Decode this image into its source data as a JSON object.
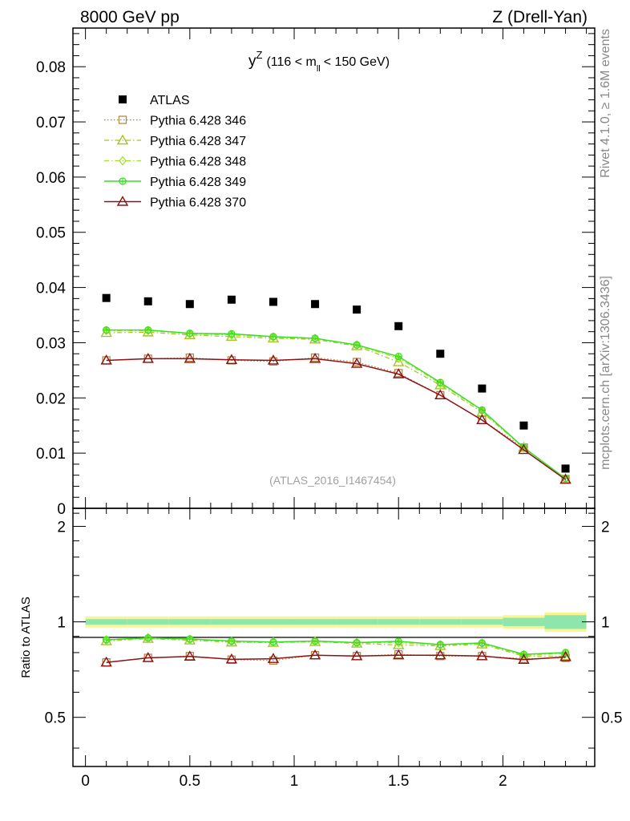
{
  "header": {
    "left": "8000 GeV pp",
    "right": "Z (Drell-Yan)"
  },
  "side_labels": {
    "rivet": "Rivet 4.1.0, ≥ 1.6M events",
    "mcplots": "mcplots.cern.ch [arXiv:1306.3436]"
  },
  "colors": {
    "atlas": "#000000",
    "p346": "#b5884a",
    "p347": "#a8c22a",
    "p348": "#9ee32b",
    "p349": "#36e01f",
    "p370": "#8e1212",
    "band_outer": "#fbf590",
    "band_inner": "#8fe6ad"
  },
  "chart_data": [
    {
      "type": "scatter",
      "title": "y^Z (116 < m_ll < 150 GeV)",
      "title_main": "y",
      "title_sup": "Z",
      "title_rest_a": "(116 < m",
      "title_sub": "ll",
      "title_rest_b": "< 150 GeV)",
      "watermark": "(ATLAS_2016_I1467454)",
      "xlabel": "",
      "ylabel": "",
      "xlim": [
        -0.06,
        2.44
      ],
      "ylim": [
        0,
        0.087
      ],
      "x": [
        0.1,
        0.3,
        0.5,
        0.7,
        0.9,
        1.1,
        1.3,
        1.5,
        1.7,
        1.9,
        2.1,
        2.3
      ],
      "yticks": [
        "0",
        "0.01",
        "0.02",
        "0.03",
        "0.04",
        "0.05",
        "0.06",
        "0.07",
        "0.08"
      ],
      "series": [
        {
          "name": "ATLAS",
          "key": "atlas",
          "marker": "square-filled",
          "line": "none",
          "values": [
            0.0381,
            0.0375,
            0.037,
            0.0378,
            0.0374,
            0.037,
            0.036,
            0.033,
            0.028,
            0.0217,
            0.015,
            0.0072
          ]
        },
        {
          "name": "Pythia 6.428 346",
          "key": "p346",
          "marker": "square-open",
          "line": "dotted",
          "values": [
            0.0268,
            0.0271,
            0.0273,
            0.0268,
            0.0266,
            0.0273,
            0.0265,
            0.0245,
            0.0205,
            0.016,
            0.011,
            0.0053
          ]
        },
        {
          "name": "Pythia 6.428 347",
          "key": "p347",
          "marker": "triangle-open",
          "line": "dashdot",
          "values": [
            0.0318,
            0.0319,
            0.0314,
            0.0311,
            0.0308,
            0.0306,
            0.0294,
            0.0265,
            0.0223,
            0.0174,
            0.011,
            0.0053
          ]
        },
        {
          "name": "Pythia 6.428 348",
          "key": "p348",
          "marker": "diamond-open",
          "line": "dashdot",
          "values": [
            0.0322,
            0.0322,
            0.0316,
            0.0314,
            0.031,
            0.0307,
            0.0295,
            0.0272,
            0.0226,
            0.0177,
            0.011,
            0.0054
          ]
        },
        {
          "name": "Pythia 6.428 349",
          "key": "p349",
          "marker": "circle-cross",
          "line": "solid",
          "values": [
            0.0323,
            0.0323,
            0.0317,
            0.0316,
            0.0311,
            0.0308,
            0.0296,
            0.0275,
            0.0228,
            0.0178,
            0.011,
            0.0054
          ]
        },
        {
          "name": "Pythia 6.428 370",
          "key": "p370",
          "marker": "triangle-open",
          "line": "solid",
          "values": [
            0.0268,
            0.0271,
            0.0271,
            0.0269,
            0.0268,
            0.0271,
            0.0262,
            0.0243,
            0.0205,
            0.016,
            0.0106,
            0.0052
          ]
        }
      ]
    },
    {
      "type": "scatter",
      "title": "Ratio to ATLAS",
      "ylabel": "Ratio to ATLAS",
      "xlim": [
        -0.06,
        2.44
      ],
      "ylim": [
        0.35,
        2.28
      ],
      "yticks": [
        "0.5",
        "1",
        "2"
      ],
      "xticks": [
        "0",
        "0.5",
        "1",
        "1.5",
        "2"
      ],
      "x": [
        0.1,
        0.3,
        0.5,
        0.7,
        0.9,
        1.1,
        1.3,
        1.5,
        1.7,
        1.9,
        2.1,
        2.3
      ],
      "band_outer": [
        0.04,
        0.04,
        0.04,
        0.04,
        0.04,
        0.04,
        0.04,
        0.04,
        0.04,
        0.04,
        0.05,
        0.07
      ],
      "band_inner": [
        0.02,
        0.02,
        0.02,
        0.02,
        0.02,
        0.02,
        0.02,
        0.02,
        0.02,
        0.02,
        0.03,
        0.05
      ],
      "series": [
        {
          "name": "Pythia 6.428 346",
          "key": "p346",
          "marker": "square-open",
          "line": "dotted",
          "values": [
            0.745,
            0.77,
            0.78,
            0.76,
            0.755,
            0.785,
            0.78,
            0.79,
            0.78,
            0.78,
            0.765,
            0.77
          ]
        },
        {
          "name": "Pythia 6.428 347",
          "key": "p347",
          "marker": "triangle-open",
          "line": "dashdot",
          "values": [
            0.87,
            0.885,
            0.875,
            0.862,
            0.86,
            0.865,
            0.855,
            0.845,
            0.84,
            0.85,
            0.78,
            0.78
          ]
        },
        {
          "name": "Pythia 6.428 348",
          "key": "p348",
          "marker": "diamond-open",
          "line": "dashdot",
          "values": [
            0.875,
            0.888,
            0.88,
            0.866,
            0.862,
            0.868,
            0.858,
            0.86,
            0.845,
            0.855,
            0.785,
            0.795
          ]
        },
        {
          "name": "Pythia 6.428 349",
          "key": "p349",
          "marker": "circle-cross",
          "line": "solid",
          "values": [
            0.878,
            0.89,
            0.883,
            0.87,
            0.864,
            0.87,
            0.86,
            0.868,
            0.848,
            0.858,
            0.79,
            0.8
          ]
        },
        {
          "name": "Pythia 6.428 370",
          "key": "p370",
          "marker": "triangle-open",
          "line": "solid",
          "values": [
            0.745,
            0.77,
            0.778,
            0.762,
            0.765,
            0.785,
            0.78,
            0.785,
            0.785,
            0.78,
            0.76,
            0.775
          ]
        }
      ]
    }
  ]
}
